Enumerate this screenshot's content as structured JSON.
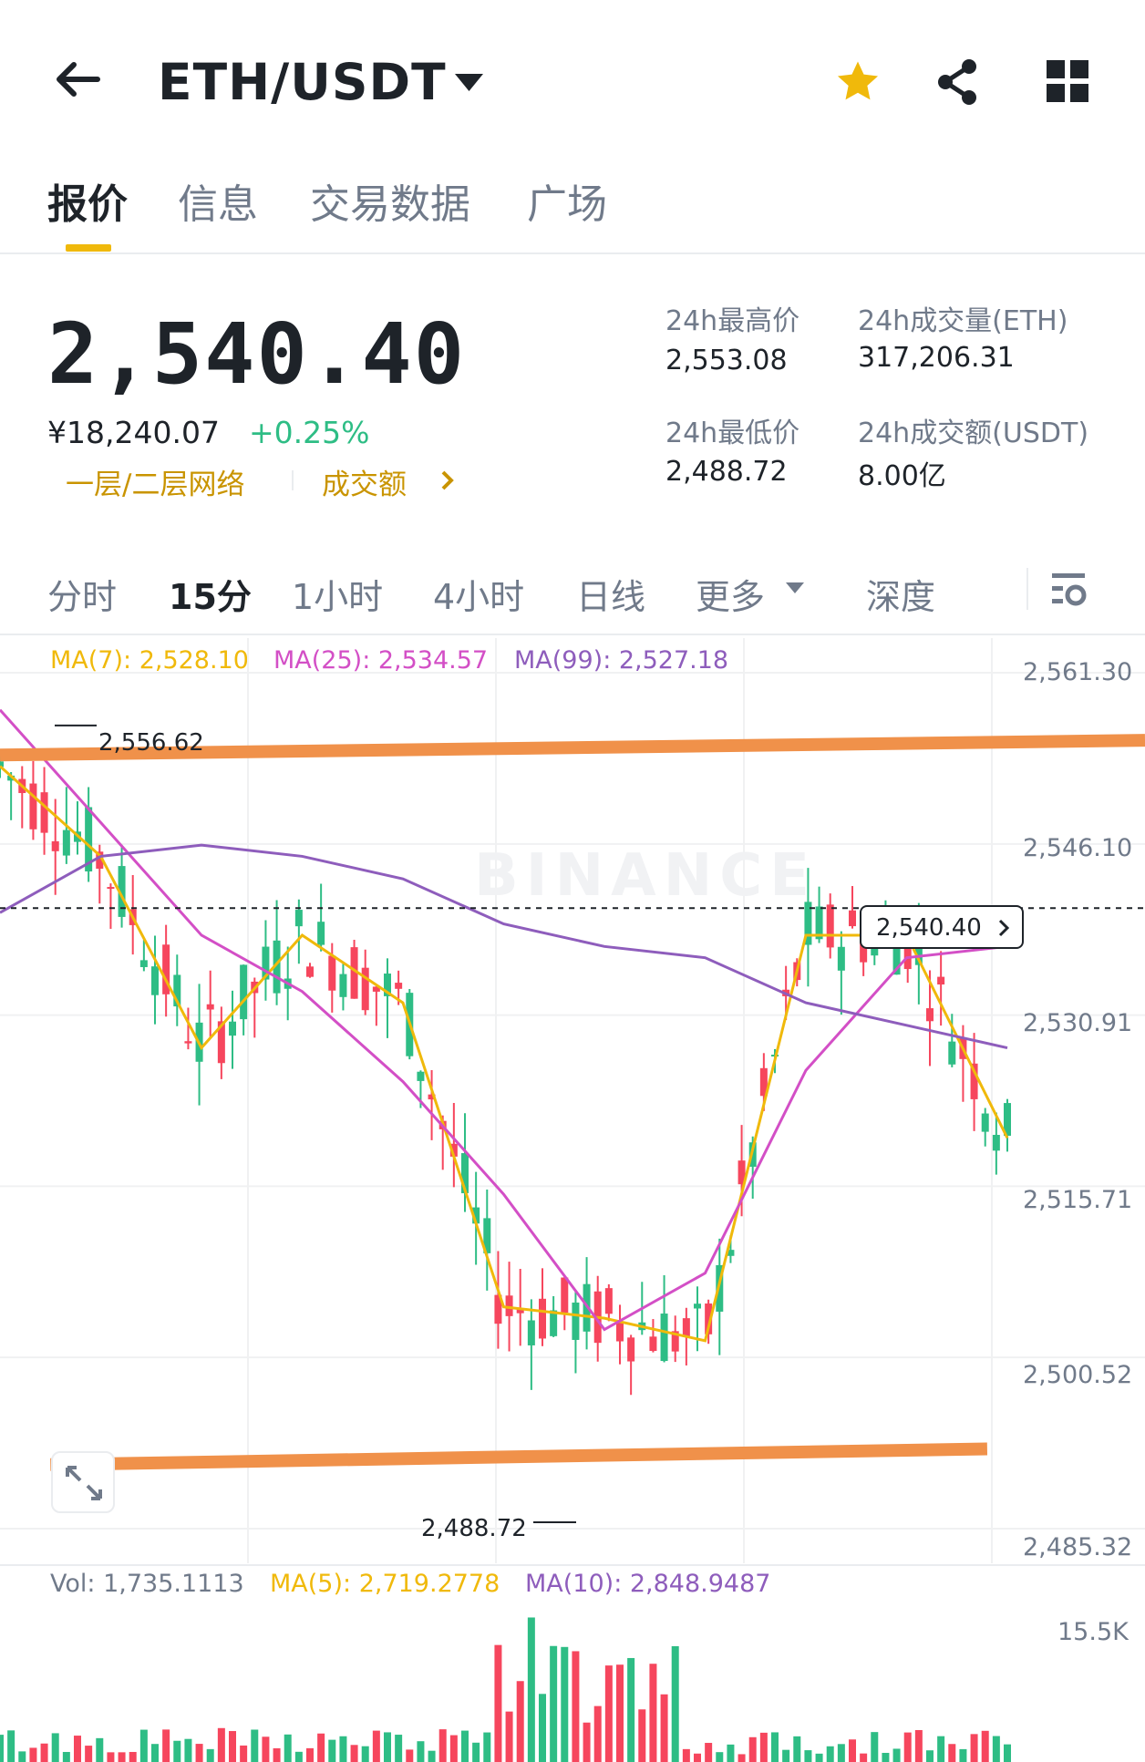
{
  "header": {
    "pair": "ETH/USDT",
    "back_icon": "arrow-left-icon",
    "dropdown_icon": "caret-down-icon",
    "favorite_icon": "star-icon",
    "share_icon": "share-icon",
    "menu_icon": "grid-icon"
  },
  "tabs": [
    {
      "label": "报价",
      "active": true
    },
    {
      "label": "信息",
      "active": false
    },
    {
      "label": "交易数据",
      "active": false
    },
    {
      "label": "广场",
      "active": false
    }
  ],
  "ticker": {
    "last_price": "2,540.40",
    "fiat_price": "¥18,240.07",
    "change": "+0.25%",
    "network_link": "一层/二层网络",
    "volume_link": "成交额",
    "stats": {
      "high_label": "24h最高价",
      "high_value": "2,553.08",
      "low_label": "24h最低价",
      "low_value": "2,488.72",
      "vol_eth_label": "24h成交量(ETH)",
      "vol_eth_value": "317,206.31",
      "vol_usdt_label": "24h成交额(USDT)",
      "vol_usdt_value": "8.00亿"
    }
  },
  "timeframes": [
    {
      "label": "分时",
      "active": false
    },
    {
      "label": "15分",
      "active": true
    },
    {
      "label": "1小时",
      "active": false
    },
    {
      "label": "4小时",
      "active": false
    },
    {
      "label": "日线",
      "active": false
    },
    {
      "label": "更多",
      "active": false
    },
    {
      "label": "深度",
      "active": false
    }
  ],
  "chart_settings_icon": "chart-settings-icon",
  "expand_icon": "expand-icon",
  "colors": {
    "up": "#2ebd85",
    "down": "#f6465d",
    "ma7": "#f0b90b",
    "ma25": "#d34fc6",
    "ma99": "#8e5dbc",
    "annotation": "#f0914a",
    "accent": "#f0b90b"
  },
  "chart_data": {
    "type": "line",
    "ma_legend": {
      "ma7": "MA(7): 2,528.10",
      "ma25": "MA(25): 2,534.57",
      "ma99": "MA(99): 2,527.18"
    },
    "y_ticks": [
      "2,561.30",
      "2,546.10",
      "2,530.91",
      "2,515.71",
      "2,500.52",
      "2,485.32"
    ],
    "ylim": [
      2485.32,
      2561.3
    ],
    "high_marker": "2,556.62",
    "low_marker": "2,488.72",
    "current_price": "2,540.40",
    "watermark": "BINANCE",
    "series": [
      {
        "name": "MA(7)",
        "x": [
          0,
          10,
          20,
          30,
          40,
          50,
          60,
          70,
          80,
          90,
          100
        ],
        "y": [
          2553,
          2545,
          2528,
          2538,
          2532,
          2505,
          2504,
          2502,
          2538,
          2538,
          2520
        ]
      },
      {
        "name": "MA(25)",
        "x": [
          0,
          10,
          20,
          30,
          40,
          50,
          60,
          70,
          80,
          90,
          100
        ],
        "y": [
          2558,
          2548,
          2538,
          2533,
          2525,
          2515,
          2503,
          2508,
          2526,
          2536,
          2537
        ]
      },
      {
        "name": "MA(99)",
        "x": [
          0,
          10,
          20,
          30,
          40,
          50,
          60,
          70,
          80,
          90,
          100
        ],
        "y": [
          2540,
          2545,
          2546,
          2545,
          2543,
          2539,
          2537,
          2536,
          2532,
          2530,
          2528
        ]
      }
    ],
    "annotation_lines": [
      {
        "from": [
          0,
          2554.0
        ],
        "to": [
          100,
          2555.3
        ]
      },
      {
        "from": [
          5,
          2491.0
        ],
        "to": [
          98,
          2492.4
        ]
      }
    ]
  },
  "volume": {
    "vol_label": "Vol: 1,735.1113",
    "ma5_label": "MA(5): 2,719.2778",
    "ma10_label": "MA(10): 2,848.9487",
    "tick": "15.5K"
  }
}
